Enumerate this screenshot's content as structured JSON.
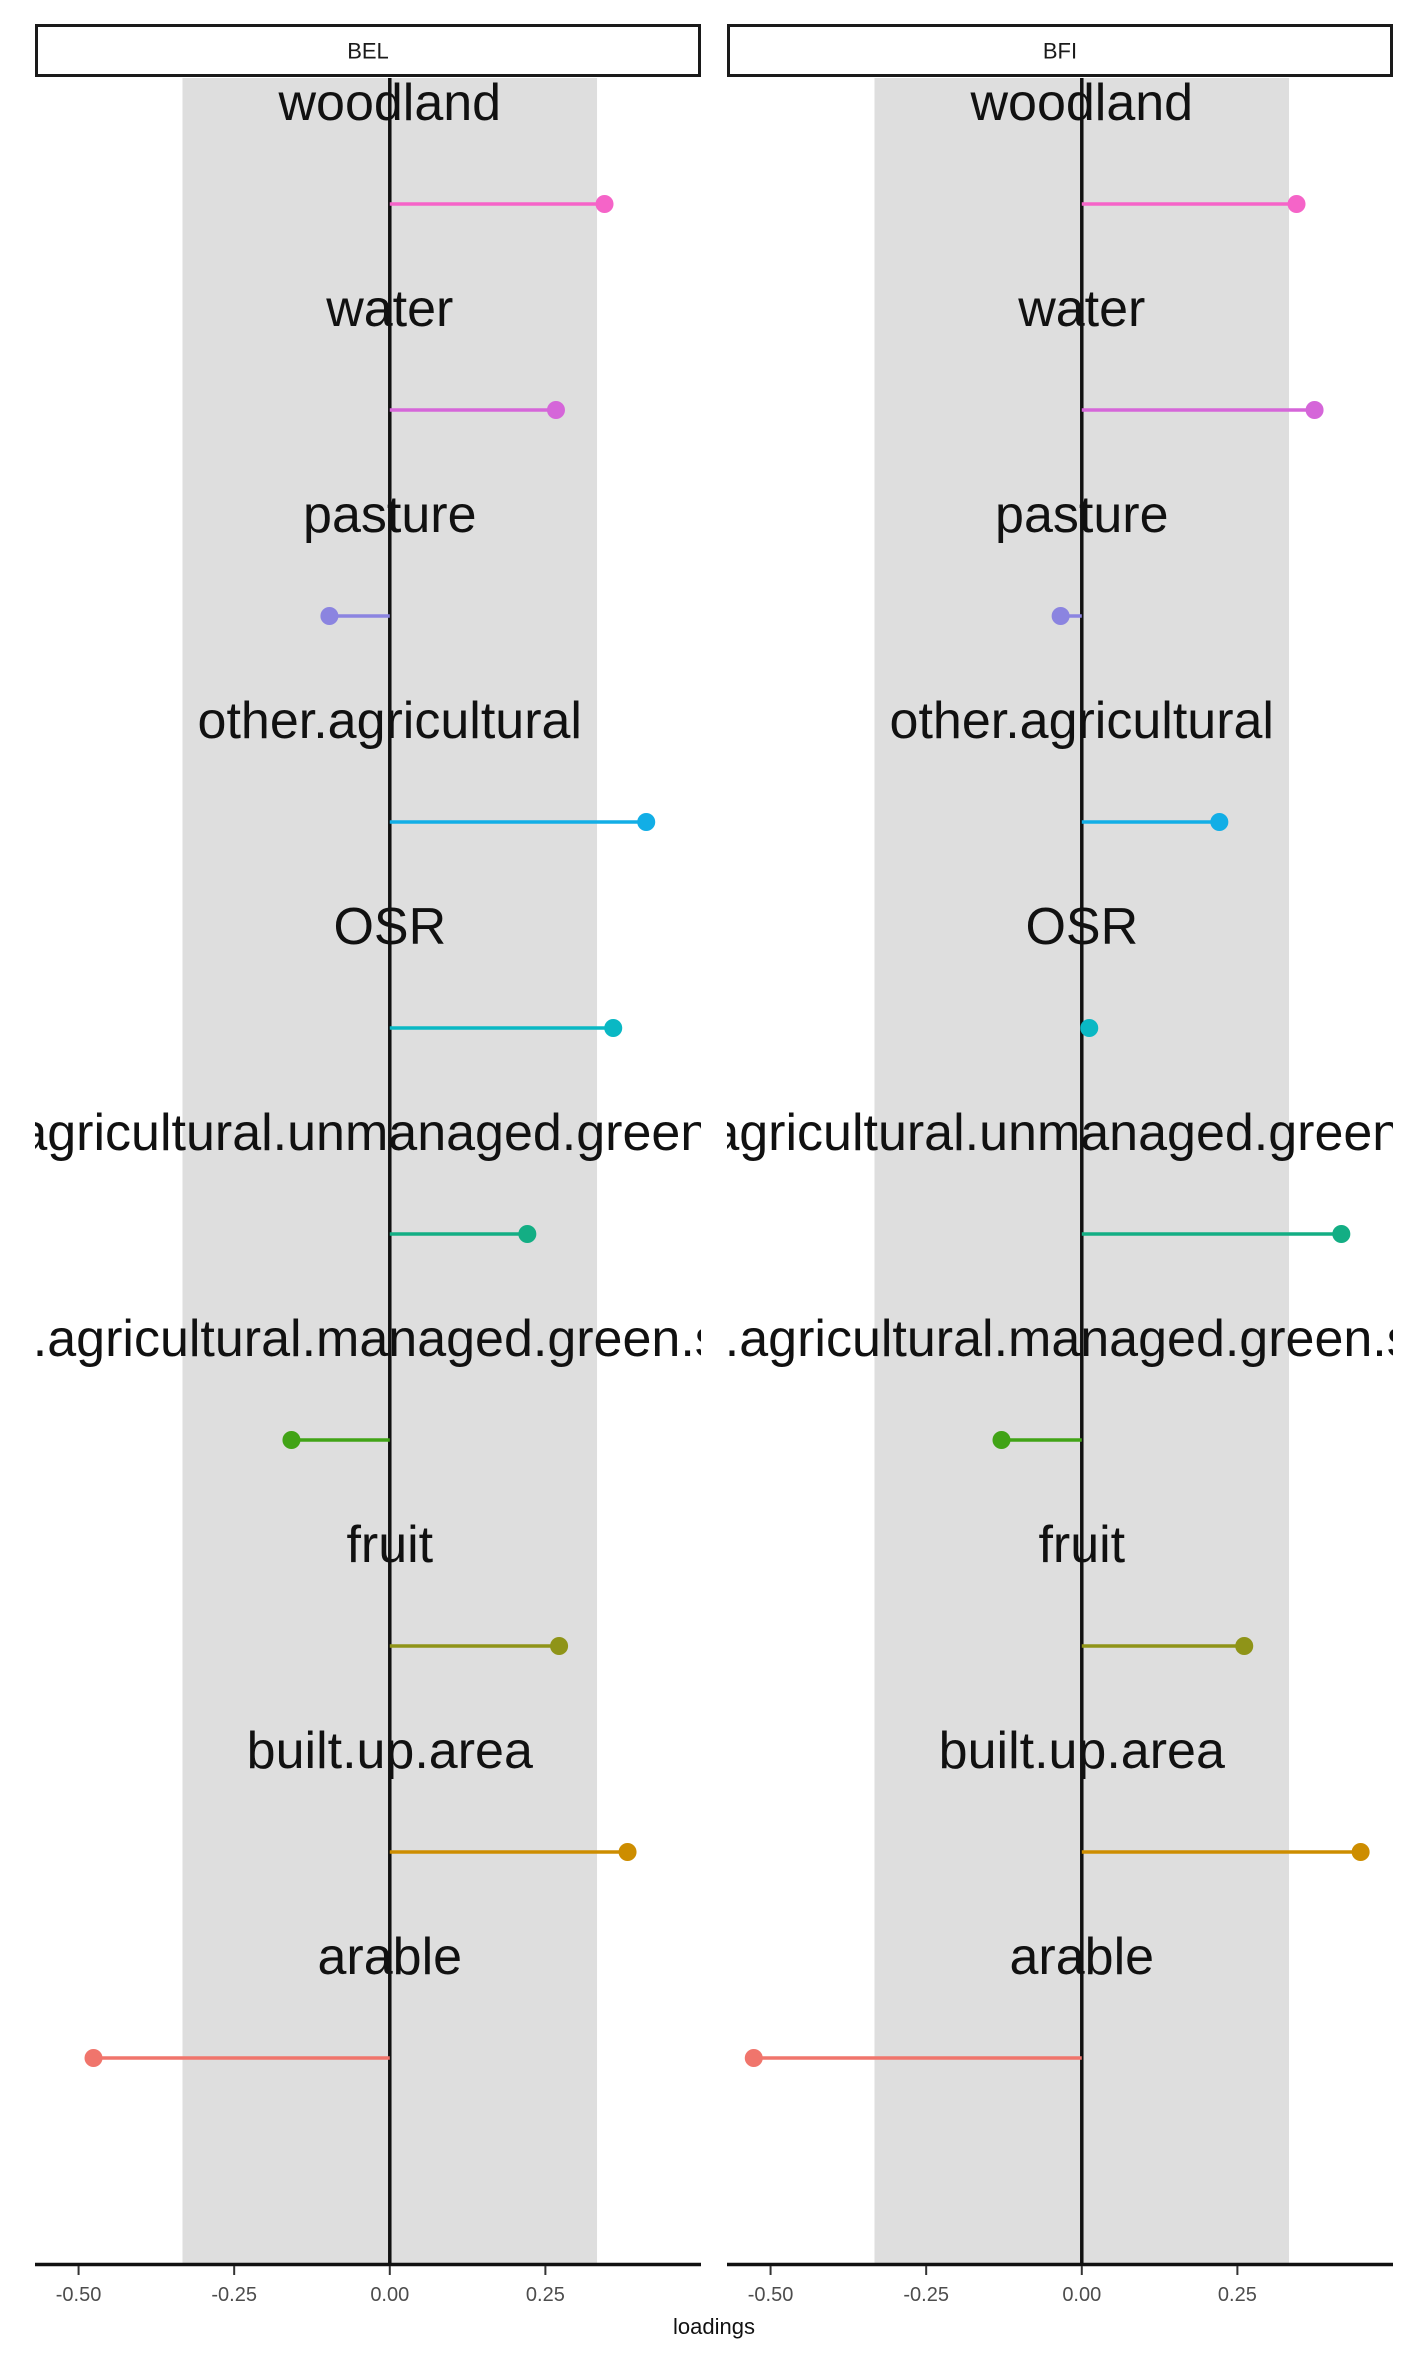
{
  "chart_data": {
    "type": "lollipop",
    "xlabel": "loadings",
    "xlim": [
      -0.57,
      0.5
    ],
    "xticks": [
      -0.5,
      -0.25,
      0.0,
      0.25
    ],
    "xtick_labels": [
      "-0.50",
      "-0.25",
      "0.00",
      "0.25"
    ],
    "shaded_band": [
      -0.333,
      0.333
    ],
    "shaded_band_color": "#dedede",
    "categories": [
      "woodland",
      "water",
      "pasture",
      "other.agricultural",
      "OSR",
      "non.agricultural.unmanaged.green.space",
      "non.agricultural.managed.green.space",
      "fruit",
      "built.up.area",
      "arable"
    ],
    "colors": [
      "#f564c8",
      "#d566d9",
      "#8b84e0",
      "#12aee6",
      "#0ab8c4",
      "#13ae84",
      "#41a316",
      "#8f9418",
      "#cd8d00",
      "#f0756c"
    ],
    "panels": [
      {
        "name": "BEL",
        "values": [
          0.345,
          0.267,
          -0.097,
          0.412,
          0.359,
          0.221,
          -0.158,
          0.272,
          0.382,
          -0.476
        ]
      },
      {
        "name": "BFI",
        "values": [
          0.345,
          0.374,
          -0.034,
          0.221,
          0.012,
          0.417,
          -0.129,
          0.261,
          0.448,
          -0.527
        ]
      }
    ]
  }
}
